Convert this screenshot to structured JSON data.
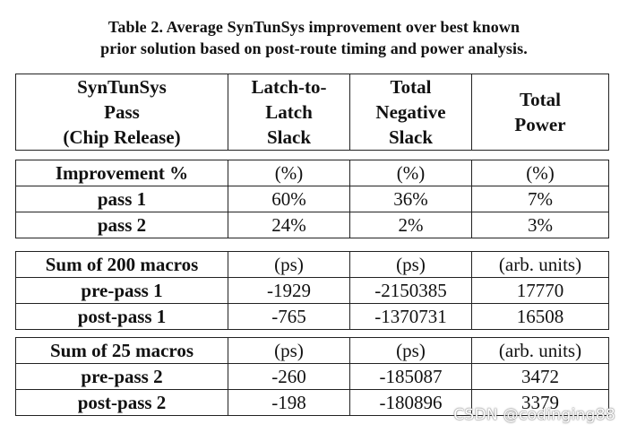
{
  "caption": {
    "line1": "Table 2. Average SynTunSys improvement over best known",
    "line2": "prior solution based on post-route timing and power analysis."
  },
  "header": {
    "col0": [
      "SynTunSys",
      "Pass",
      "(Chip Release)"
    ],
    "col1": [
      "Latch-to-",
      "Latch",
      "Slack"
    ],
    "col2": [
      "Total",
      "Negative",
      "Slack"
    ],
    "col3": [
      "Total",
      "Power"
    ]
  },
  "sections": [
    {
      "rows": [
        [
          "Improvement %",
          "(%)",
          "(%)",
          "(%)"
        ],
        [
          "pass 1",
          "60%",
          "36%",
          "7%"
        ],
        [
          "pass 2",
          "24%",
          "2%",
          "3%"
        ]
      ]
    },
    {
      "rows": [
        [
          "Sum of 200 macros",
          "(ps)",
          "(ps)",
          "(arb. units)"
        ],
        [
          "pre-pass 1",
          "-1929",
          "-2150385",
          "17770"
        ],
        [
          "post-pass 1",
          "-765",
          "-1370731",
          "16508"
        ]
      ]
    },
    {
      "rows": [
        [
          "Sum of 25 macros",
          "(ps)",
          "(ps)",
          "(arb. units)"
        ],
        [
          "pre-pass 2",
          "-260",
          "-185087",
          "3472"
        ],
        [
          "post-pass 2",
          "-198",
          "-180896",
          "3379"
        ]
      ]
    }
  ],
  "watermark": "CSDN @codinging88"
}
